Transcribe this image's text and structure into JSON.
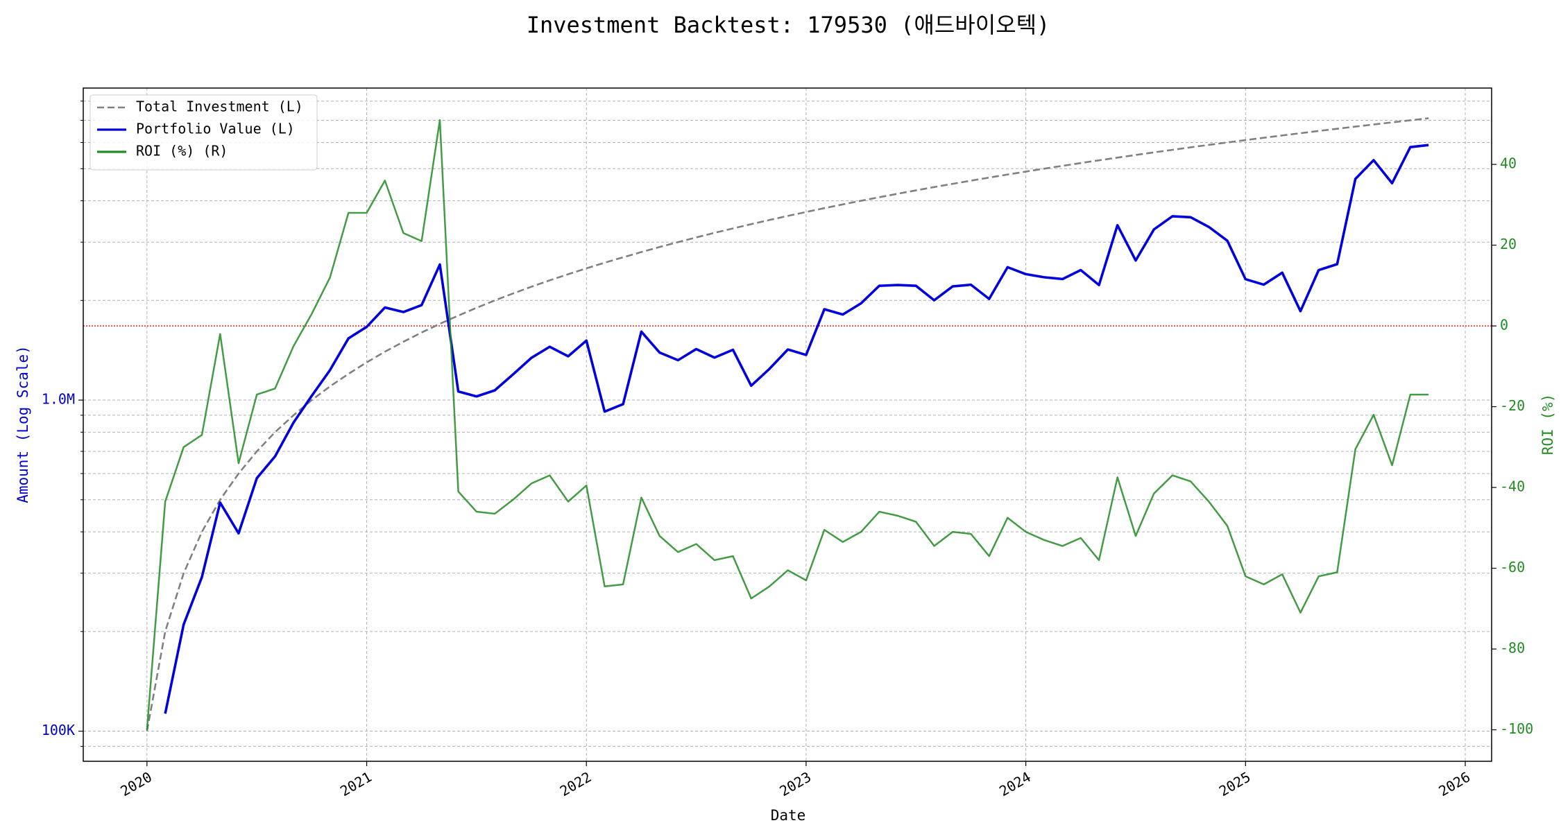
{
  "chart_data": {
    "type": "line",
    "title": "Investment Backtest: 179530 (애드바이오텍)",
    "x_label": "Date",
    "y_label": "Amount (Log Scale)",
    "y2_label": "ROI (%)",
    "x": [
      2020,
      2020.083,
      2020.167,
      2020.25,
      2020.333,
      2020.417,
      2020.5,
      2020.583,
      2020.667,
      2020.75,
      2020.833,
      2020.917,
      2021,
      2021.083,
      2021.167,
      2021.25,
      2021.333,
      2021.417,
      2021.5,
      2021.583,
      2021.667,
      2021.75,
      2021.833,
      2021.917,
      2022,
      2022.083,
      2022.167,
      2022.25,
      2022.333,
      2022.417,
      2022.5,
      2022.583,
      2022.667,
      2022.75,
      2022.833,
      2022.917,
      2023,
      2023.083,
      2023.167,
      2023.25,
      2023.333,
      2023.417,
      2023.5,
      2023.583,
      2023.667,
      2023.75,
      2023.833,
      2023.917,
      2024,
      2024.083,
      2024.167,
      2024.25,
      2024.333,
      2024.417,
      2024.5,
      2024.583,
      2024.667,
      2024.75,
      2024.833,
      2024.917,
      2025,
      2025.083,
      2025.167,
      2025.25,
      2025.333,
      2025.417,
      2025.5,
      2025.583,
      2025.667,
      2025.75,
      2025.833
    ],
    "xlim": [
      2019.71,
      2026.12
    ],
    "xticks": [
      2020,
      2021,
      2022,
      2023,
      2024,
      2025,
      2026
    ],
    "ylog": true,
    "ylim": [
      81100,
      8760000
    ],
    "yticks": [
      {
        "value": 100000,
        "label": "100K"
      },
      {
        "value": 1000000,
        "label": "1.0M"
      }
    ],
    "yminorticks": [
      90000,
      200000,
      300000,
      400000,
      500000,
      600000,
      700000,
      800000,
      900000,
      2000000,
      3000000,
      4000000,
      5000000,
      6000000,
      7000000,
      8000000
    ],
    "y2lim": [
      -107.8,
      58.9
    ],
    "y2ticks": [
      -100,
      -80,
      -60,
      -40,
      -20,
      0,
      20,
      40
    ],
    "grid": true,
    "legend": "upper left",
    "hline": {
      "value": 0,
      "color": "#ff0000",
      "axis": "y2"
    },
    "series": [
      {
        "name": "Total Investment (L)",
        "color": "#808080",
        "dashed": true,
        "axis": "y",
        "values": [
          100000,
          200000,
          300000,
          400000,
          500000,
          600000,
          700000,
          800000,
          900000,
          1000000,
          1100000,
          1200000,
          1300000,
          1400000,
          1500000,
          1600000,
          1700000,
          1800000,
          1900000,
          2000000,
          2100000,
          2200000,
          2300000,
          2400000,
          2500000,
          2600000,
          2700000,
          2800000,
          2900000,
          3000000,
          3100000,
          3200000,
          3300000,
          3400000,
          3500000,
          3600000,
          3700000,
          3800000,
          3900000,
          4000000,
          4100000,
          4200000,
          4300000,
          4400000,
          4500000,
          4600000,
          4700000,
          4800000,
          4900000,
          5000000,
          5100000,
          5200000,
          5300000,
          5400000,
          5500000,
          5600000,
          5700000,
          5800000,
          5900000,
          6000000,
          6100000,
          6200000,
          6300000,
          6400000,
          6500000,
          6600000,
          6700000,
          6800000,
          6900000,
          7000000,
          7100000
        ]
      },
      {
        "name": "Portfolio Value (L)",
        "color": "#0000dd",
        "dashed": false,
        "axis": "y",
        "values": [
          null,
          113000,
          210000,
          292000,
          490000,
          396000,
          581000,
          676000,
          855000,
          1030000,
          1232000,
          1536000,
          1664000,
          1904000,
          1845000,
          1936000,
          2567000,
          1062000,
          1026000,
          1070000,
          1197000,
          1342000,
          1449000,
          1356000,
          1512500,
          923000,
          972000,
          1610000,
          1392000,
          1320000,
          1426000,
          1344000,
          1419000,
          1105000,
          1242500,
          1422000,
          1369000,
          1881000,
          1813500,
          1960000,
          2214000,
          2226000,
          2214500,
          2002000,
          2205000,
          2231000,
          2021000,
          2520000,
          2401000,
          2350000,
          2320500,
          2470000,
          2226000,
          3375000,
          2640000,
          3276000,
          3591000,
          3567000,
          3333500,
          3030000,
          2318000,
          2232000,
          2425500,
          1856000,
          2470000,
          2574000,
          4656500,
          5304000,
          4519500,
          5810000,
          5893000
        ]
      },
      {
        "name": "ROI (%) (R)",
        "color": "#228b22",
        "dashed": false,
        "axis": "y2",
        "values": [
          -100,
          -43.5,
          -30,
          -27,
          -2,
          -34,
          -17,
          -15.5,
          -5,
          3,
          12,
          28,
          28,
          36,
          23,
          21,
          51,
          -41,
          -46,
          -46.5,
          -43,
          -39,
          -37,
          -43.5,
          -39.5,
          -64.5,
          -64,
          -42.5,
          -52,
          -56,
          -54,
          -58,
          -57,
          -67.5,
          -64.5,
          -60.5,
          -63,
          -50.5,
          -53.5,
          -51,
          -46,
          -47,
          -48.5,
          -54.5,
          -51,
          -51.5,
          -57,
          -47.5,
          -51,
          -53,
          -54.5,
          -52.5,
          -58,
          -37.5,
          -52,
          -41.5,
          -37,
          -38.5,
          -43.5,
          -49.5,
          -62,
          -64,
          -61.5,
          -71,
          -62,
          -61,
          -30.5,
          -22,
          -34.5,
          -17,
          -17
        ]
      }
    ]
  }
}
